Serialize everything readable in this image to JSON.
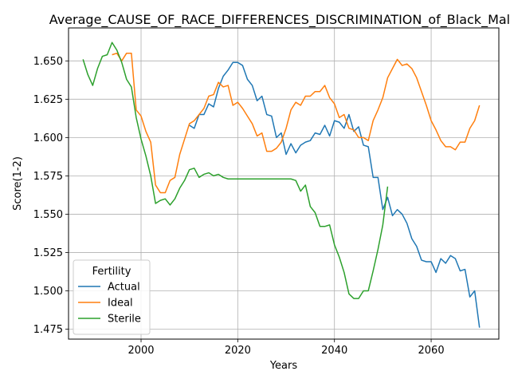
{
  "chart_data": {
    "type": "line",
    "title": "Average_CAUSE_OF_RACE_DIFFERENCES_DISCRIMINATION_of_Black_Males",
    "xlabel": "Years",
    "ylabel": "Score(1-2)",
    "xlim": [
      1985,
      2074
    ],
    "ylim": [
      1.4685,
      1.6715
    ],
    "xticks": [
      2000,
      2020,
      2040,
      2060
    ],
    "yticks": [
      1.475,
      1.5,
      1.525,
      1.55,
      1.575,
      1.6,
      1.625,
      1.65
    ],
    "grid": true,
    "legend": {
      "title": "Fertility",
      "placement": "lower-left"
    },
    "series": [
      {
        "name": "Actual",
        "color": "#1f77b4",
        "x": [
          2010,
          2011,
          2012,
          2013,
          2014,
          2015,
          2016,
          2017,
          2018,
          2019,
          2020,
          2021,
          2022,
          2023,
          2024,
          2025,
          2026,
          2027,
          2028,
          2029,
          2030,
          2031,
          2032,
          2033,
          2034,
          2035,
          2036,
          2037,
          2038,
          2039,
          2040,
          2041,
          2042,
          2043,
          2044,
          2045,
          2046,
          2047,
          2048,
          2049,
          2050,
          2051,
          2052,
          2053,
          2054,
          2055,
          2056,
          2057,
          2058,
          2059,
          2060,
          2061,
          2062,
          2063,
          2064,
          2065,
          2066,
          2067,
          2068,
          2069,
          2070
        ],
        "values": [
          1.608,
          1.606,
          1.615,
          1.615,
          1.622,
          1.62,
          1.632,
          1.64,
          1.644,
          1.649,
          1.649,
          1.647,
          1.638,
          1.634,
          1.624,
          1.627,
          1.615,
          1.614,
          1.6,
          1.603,
          1.589,
          1.596,
          1.59,
          1.595,
          1.597,
          1.598,
          1.603,
          1.602,
          1.608,
          1.601,
          1.611,
          1.61,
          1.606,
          1.615,
          1.604,
          1.607,
          1.595,
          1.594,
          1.574,
          1.574,
          1.553,
          1.561,
          1.549,
          1.553,
          1.55,
          1.544,
          1.534,
          1.529,
          1.52,
          1.519,
          1.519,
          1.512,
          1.521,
          1.518,
          1.523,
          1.521,
          1.513,
          1.514,
          1.496,
          1.5,
          1.476
        ]
      },
      {
        "name": "Ideal",
        "color": "#ff7f0e",
        "x": [
          1994,
          1995,
          1996,
          1997,
          1998,
          1999,
          2000,
          2001,
          2002,
          2003,
          2004,
          2005,
          2006,
          2007,
          2008,
          2009,
          2010,
          2011,
          2012,
          2013,
          2014,
          2015,
          2016,
          2017,
          2018,
          2019,
          2020,
          2021,
          2022,
          2023,
          2024,
          2025,
          2026,
          2027,
          2028,
          2029,
          2030,
          2031,
          2032,
          2033,
          2034,
          2035,
          2036,
          2037,
          2038,
          2039,
          2040,
          2041,
          2042,
          2043,
          2044,
          2045,
          2046,
          2047,
          2048,
          2049,
          2050,
          2051,
          2052,
          2053,
          2054,
          2055,
          2056,
          2057,
          2058,
          2059,
          2060,
          2061,
          2062,
          2063,
          2064,
          2065,
          2066,
          2067,
          2068,
          2069,
          2070
        ],
        "values": [
          1.654,
          1.655,
          1.65,
          1.655,
          1.655,
          1.618,
          1.614,
          1.604,
          1.597,
          1.569,
          1.564,
          1.564,
          1.572,
          1.574,
          1.589,
          1.599,
          1.609,
          1.611,
          1.615,
          1.619,
          1.627,
          1.628,
          1.636,
          1.633,
          1.634,
          1.621,
          1.623,
          1.619,
          1.614,
          1.609,
          1.601,
          1.603,
          1.591,
          1.591,
          1.593,
          1.597,
          1.606,
          1.618,
          1.623,
          1.621,
          1.627,
          1.627,
          1.63,
          1.63,
          1.634,
          1.626,
          1.622,
          1.613,
          1.615,
          1.606,
          1.605,
          1.6,
          1.6,
          1.598,
          1.611,
          1.618,
          1.626,
          1.639,
          1.645,
          1.651,
          1.647,
          1.648,
          1.645,
          1.639,
          1.63,
          1.621,
          1.611,
          1.605,
          1.598,
          1.594,
          1.594,
          1.592,
          1.597,
          1.597,
          1.606,
          1.611,
          1.621
        ]
      },
      {
        "name": "Sterile",
        "color": "#2ca02c",
        "x": [
          1988,
          1989,
          1990,
          1991,
          1992,
          1993,
          1994,
          1995,
          1996,
          1997,
          1998,
          1999,
          2000,
          2001,
          2002,
          2003,
          2004,
          2005,
          2006,
          2007,
          2008,
          2009,
          2010,
          2011,
          2012,
          2013,
          2014,
          2015,
          2016,
          2017,
          2018,
          2019,
          2020,
          2021,
          2022,
          2023,
          2024,
          2025,
          2026,
          2027,
          2028,
          2029,
          2030,
          2031,
          2032,
          2033,
          2034,
          2035,
          2036,
          2037,
          2038,
          2039,
          2040,
          2041,
          2042,
          2043,
          2044,
          2045,
          2046,
          2047,
          2048,
          2049,
          2050,
          2051
        ],
        "values": [
          1.651,
          1.641,
          1.634,
          1.645,
          1.653,
          1.654,
          1.662,
          1.657,
          1.649,
          1.638,
          1.633,
          1.613,
          1.599,
          1.588,
          1.575,
          1.557,
          1.559,
          1.56,
          1.556,
          1.56,
          1.567,
          1.572,
          1.579,
          1.58,
          1.574,
          1.576,
          1.577,
          1.575,
          1.576,
          1.574,
          1.573,
          1.573,
          1.573,
          1.573,
          1.573,
          1.573,
          1.573,
          1.573,
          1.573,
          1.573,
          1.573,
          1.573,
          1.573,
          1.573,
          1.572,
          1.565,
          1.569,
          1.555,
          1.551,
          1.542,
          1.542,
          1.543,
          1.53,
          1.522,
          1.512,
          1.498,
          1.495,
          1.495,
          1.5,
          1.5,
          1.513,
          1.527,
          1.543,
          1.568
        ]
      }
    ]
  }
}
